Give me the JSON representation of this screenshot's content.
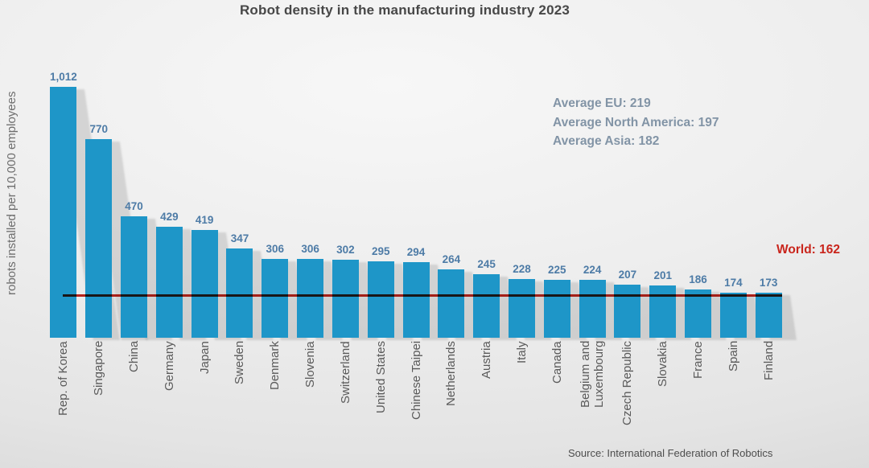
{
  "chart_data": {
    "type": "bar",
    "title": "Robot density in the manufacturing industry 2023",
    "ylabel": "robots installed per 10,000 employees",
    "xlabel": "",
    "categories": [
      "Rep. of Korea",
      "Singapore",
      "China",
      "Germany",
      "Japan",
      "Sweden",
      "Denmark",
      "Slovenia",
      "Switzerland",
      "United States",
      "Chinese Taipei",
      "Netherlands",
      "Austria",
      "Italy",
      "Canada",
      "Belgium and Luxembourg",
      "Czech Republic",
      "Slovakia",
      "France",
      "Spain",
      "Finland"
    ],
    "values": [
      1012,
      770,
      470,
      429,
      419,
      347,
      306,
      306,
      302,
      295,
      294,
      264,
      245,
      228,
      225,
      224,
      207,
      201,
      186,
      174,
      173
    ],
    "value_labels": [
      "1,012",
      "770",
      "470",
      "429",
      "419",
      "347",
      "306",
      "306",
      "302",
      "295",
      "294",
      "264",
      "245",
      "228",
      "225",
      "224",
      "207",
      "201",
      "186",
      "174",
      "173"
    ],
    "world_line": {
      "label": "World: 162",
      "value": 162
    },
    "annotations": [
      "Average EU: 219",
      "Average North America: 197",
      "Average Asia: 182"
    ],
    "ylim": [
      0,
      1050
    ],
    "grid": false,
    "legend": "none",
    "colors": {
      "bar": "#1e96c8",
      "value_label": "#4d7ba6",
      "annotation": "#8294a6",
      "world": "#c9251c"
    }
  },
  "source": "Source: International Federation of Robotics"
}
